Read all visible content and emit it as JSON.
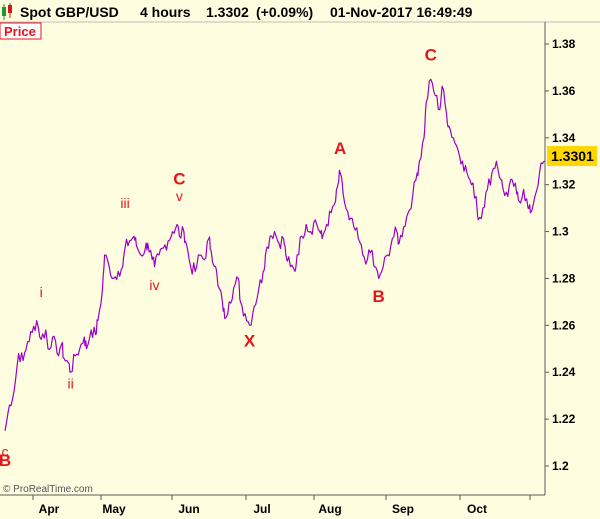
{
  "header": {
    "instrument": "Spot GBP/USD",
    "timeframe": "4 hours",
    "last_price": "1.3302",
    "change": "(+0.09%)",
    "datetime": "01-Nov-2017 16:49:49"
  },
  "panel_label": "Price",
  "price_tag": "1.3301",
  "watermark": "© ProRealTime.com",
  "colors": {
    "background": "#fffde0",
    "series": "#9a00c8",
    "wave_labels": "#e8141b",
    "price_tag": "#ffd700",
    "panel_label": "#e8141b"
  },
  "chart_data": {
    "type": "line",
    "title": "",
    "xlabel": "",
    "ylabel": "",
    "ylim": [
      1.195,
      1.388
    ],
    "y_ticks": [
      "1.38",
      "1.36",
      "1.34",
      "1.32",
      "1.3",
      "1.28",
      "1.26",
      "1.24",
      "1.22",
      "1.2"
    ],
    "x_ticks": [
      "Apr",
      "May",
      "Jun",
      "Jul",
      "Aug",
      "Sep",
      "Oct"
    ],
    "series": [
      {
        "values": [
          [
            0.0,
            1.215
          ],
          [
            2.0,
            1.226
          ],
          [
            4.0,
            1.232
          ],
          [
            6.0,
            1.248
          ],
          [
            8.0,
            1.245
          ],
          [
            10.0,
            1.253
          ],
          [
            12.0,
            1.257
          ],
          [
            14.0,
            1.262
          ],
          [
            16.0,
            1.254
          ],
          [
            18.0,
            1.258
          ],
          [
            19.0,
            1.25
          ],
          [
            21.0,
            1.255
          ],
          [
            23.0,
            1.248
          ],
          [
            25.0,
            1.252
          ],
          [
            26.0,
            1.246
          ],
          [
            28.0,
            1.244
          ],
          [
            29.0,
            1.24
          ],
          [
            31.0,
            1.247
          ],
          [
            33.0,
            1.25
          ],
          [
            35.0,
            1.255
          ],
          [
            36.0,
            1.25
          ],
          [
            38.0,
            1.258
          ],
          [
            40.0,
            1.256
          ],
          [
            41.0,
            1.262
          ],
          [
            43.0,
            1.275
          ],
          [
            44.0,
            1.29
          ],
          [
            46.0,
            1.285
          ],
          [
            48.0,
            1.28
          ],
          [
            50.0,
            1.283
          ],
          [
            52.0,
            1.285
          ],
          [
            53.0,
            1.293
          ],
          [
            55.0,
            1.296
          ],
          [
            57.0,
            1.298
          ],
          [
            58.0,
            1.294
          ],
          [
            60.0,
            1.29
          ],
          [
            62.0,
            1.293
          ],
          [
            63.0,
            1.295
          ],
          [
            65.0,
            1.288
          ],
          [
            66.0,
            1.285
          ],
          [
            68.0,
            1.29
          ],
          [
            70.0,
            1.293
          ],
          [
            72.0,
            1.296
          ],
          [
            74.0,
            1.3
          ],
          [
            76.0,
            1.303
          ],
          [
            77.0,
            1.298
          ],
          [
            79.0,
            1.3
          ],
          [
            80.0,
            1.295
          ],
          [
            82.0,
            1.285
          ],
          [
            84.0,
            1.283
          ],
          [
            86.0,
            1.29
          ],
          [
            88.0,
            1.288
          ],
          [
            90.0,
            1.297
          ],
          [
            91.0,
            1.292
          ],
          [
            93.0,
            1.285
          ],
          [
            94.0,
            1.277
          ],
          [
            96.0,
            1.27
          ],
          [
            97.0,
            1.263
          ],
          [
            99.0,
            1.27
          ],
          [
            101.0,
            1.276
          ],
          [
            103.0,
            1.28
          ],
          [
            104.0,
            1.27
          ],
          [
            106.0,
            1.265
          ],
          [
            108.0,
            1.26
          ],
          [
            110.0,
            1.268
          ],
          [
            112.0,
            1.275
          ],
          [
            114.0,
            1.283
          ],
          [
            115.0,
            1.29
          ],
          [
            117.0,
            1.298
          ],
          [
            119.0,
            1.3
          ],
          [
            121.0,
            1.295
          ],
          [
            123.0,
            1.297
          ],
          [
            124.0,
            1.29
          ],
          [
            126.0,
            1.285
          ],
          [
            128.0,
            1.283
          ],
          [
            129.0,
            1.29
          ],
          [
            131.0,
            1.298
          ],
          [
            133.0,
            1.303
          ],
          [
            135.0,
            1.3
          ],
          [
            137.0,
            1.305
          ],
          [
            139.0,
            1.3
          ],
          [
            140.0,
            1.297
          ],
          [
            142.0,
            1.303
          ],
          [
            144.0,
            1.308
          ],
          [
            146.0,
            1.313
          ],
          [
            147.0,
            1.32
          ],
          [
            148.0,
            1.325
          ],
          [
            150.0,
            1.312
          ],
          [
            152.0,
            1.305
          ],
          [
            154.0,
            1.302
          ],
          [
            156.0,
            1.297
          ],
          [
            158.0,
            1.29
          ],
          [
            160.0,
            1.288
          ],
          [
            162.0,
            1.292
          ],
          [
            163.0,
            1.285
          ],
          [
            165.0,
            1.28
          ],
          [
            167.0,
            1.285
          ],
          [
            169.0,
            1.29
          ],
          [
            171.0,
            1.297
          ],
          [
            173.0,
            1.3
          ],
          [
            174.0,
            1.295
          ],
          [
            176.0,
            1.302
          ],
          [
            178.0,
            1.308
          ],
          [
            180.0,
            1.315
          ],
          [
            182.0,
            1.325
          ],
          [
            183.0,
            1.33
          ],
          [
            185.0,
            1.34
          ],
          [
            186.0,
            1.355
          ],
          [
            188.0,
            1.365
          ],
          [
            190.0,
            1.358
          ],
          [
            192.0,
            1.352
          ],
          [
            193.0,
            1.362
          ],
          [
            195.0,
            1.35
          ],
          [
            196.0,
            1.345
          ],
          [
            198.0,
            1.34
          ],
          [
            200.0,
            1.335
          ],
          [
            202.0,
            1.33
          ],
          [
            204.0,
            1.325
          ],
          [
            206.0,
            1.32
          ],
          [
            208.0,
            1.315
          ],
          [
            209.0,
            1.305
          ],
          [
            211.0,
            1.31
          ],
          [
            213.0,
            1.318
          ],
          [
            215.0,
            1.325
          ],
          [
            217.0,
            1.33
          ],
          [
            219.0,
            1.322
          ],
          [
            220.0,
            1.318
          ],
          [
            222.0,
            1.315
          ],
          [
            224.0,
            1.322
          ],
          [
            226.0,
            1.316
          ],
          [
            227.0,
            1.313
          ],
          [
            229.0,
            1.318
          ],
          [
            231.0,
            1.31
          ],
          [
            232.0,
            1.308
          ],
          [
            234.0,
            1.315
          ],
          [
            236.0,
            1.325
          ],
          [
            238.0,
            1.33
          ]
        ]
      }
    ],
    "wave_labels": [
      {
        "text": "B",
        "x": 0.0,
        "y": 1.2,
        "size": "big"
      },
      {
        "text": "c",
        "x": 0.0,
        "y": 1.204,
        "size": "small"
      },
      {
        "text": "i",
        "x": 16.0,
        "y": 1.272,
        "size": "small"
      },
      {
        "text": "ii",
        "x": 29.0,
        "y": 1.233,
        "size": "small"
      },
      {
        "text": "iii",
        "x": 53.0,
        "y": 1.31,
        "size": "small"
      },
      {
        "text": "iv",
        "x": 66.0,
        "y": 1.275,
        "size": "small"
      },
      {
        "text": "v",
        "x": 77.0,
        "y": 1.313,
        "size": "small"
      },
      {
        "text": "C",
        "x": 77.0,
        "y": 1.32,
        "size": "big"
      },
      {
        "text": "X",
        "x": 108.0,
        "y": 1.251,
        "size": "big"
      },
      {
        "text": "A",
        "x": 148.0,
        "y": 1.333,
        "size": "big"
      },
      {
        "text": "B",
        "x": 165.0,
        "y": 1.27,
        "size": "big"
      },
      {
        "text": "C",
        "x": 188.0,
        "y": 1.373,
        "size": "big"
      }
    ]
  }
}
